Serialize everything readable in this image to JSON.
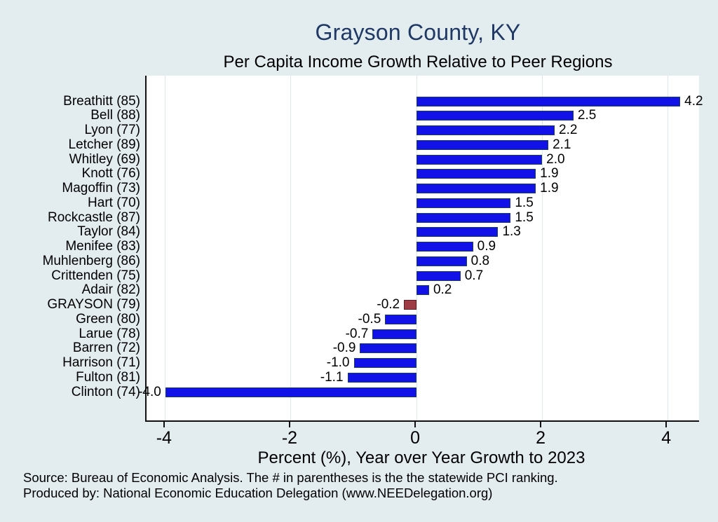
{
  "header": {
    "title": "Grayson County, KY",
    "subtitle": "Per Capita Income Growth Relative to Peer Regions",
    "title_color": "#1f3864"
  },
  "chart_data": {
    "type": "bar",
    "orientation": "horizontal",
    "categories": [
      "Breathitt (85)",
      "Bell (88)",
      "Lyon (77)",
      "Letcher (89)",
      "Whitley (69)",
      "Knott (76)",
      "Magoffin (73)",
      "Hart (70)",
      "Rockcastle (87)",
      "Taylor (84)",
      "Menifee (83)",
      "Muhlenberg (86)",
      "Crittenden (75)",
      "Adair (82)",
      "GRAYSON (79)",
      "Green (80)",
      "Larue (78)",
      "Barren (72)",
      "Harrison (71)",
      "Fulton (81)",
      "Clinton (74)"
    ],
    "values": [
      4.2,
      2.5,
      2.2,
      2.1,
      2.0,
      1.9,
      1.9,
      1.5,
      1.5,
      1.3,
      0.9,
      0.8,
      0.7,
      0.2,
      -0.2,
      -0.5,
      -0.7,
      -0.9,
      -1.0,
      -1.1,
      -4.0
    ],
    "highlight_index": 14,
    "bar_color": "#1212e8",
    "bar_border_color": "#1e3d5e",
    "highlight_color": "#9e3b44",
    "highlight_border_color": "#5a2026",
    "xlabel": "Percent (%), Year over Year Growth to 2023",
    "x_ticks": [
      -4,
      -2,
      0,
      2,
      4
    ],
    "xlim": [
      -4.3,
      4.5
    ],
    "grid": true,
    "legend": "none",
    "background_color": "#e3edf0",
    "plot_background_color": "#ffffff"
  },
  "footer": {
    "line1": "Source: Bureau of Economic Analysis. The # in parentheses is the the statewide PCI ranking.",
    "line2": "Produced by: National Economic Education Delegation (www.NEEDelegation.org)"
  }
}
